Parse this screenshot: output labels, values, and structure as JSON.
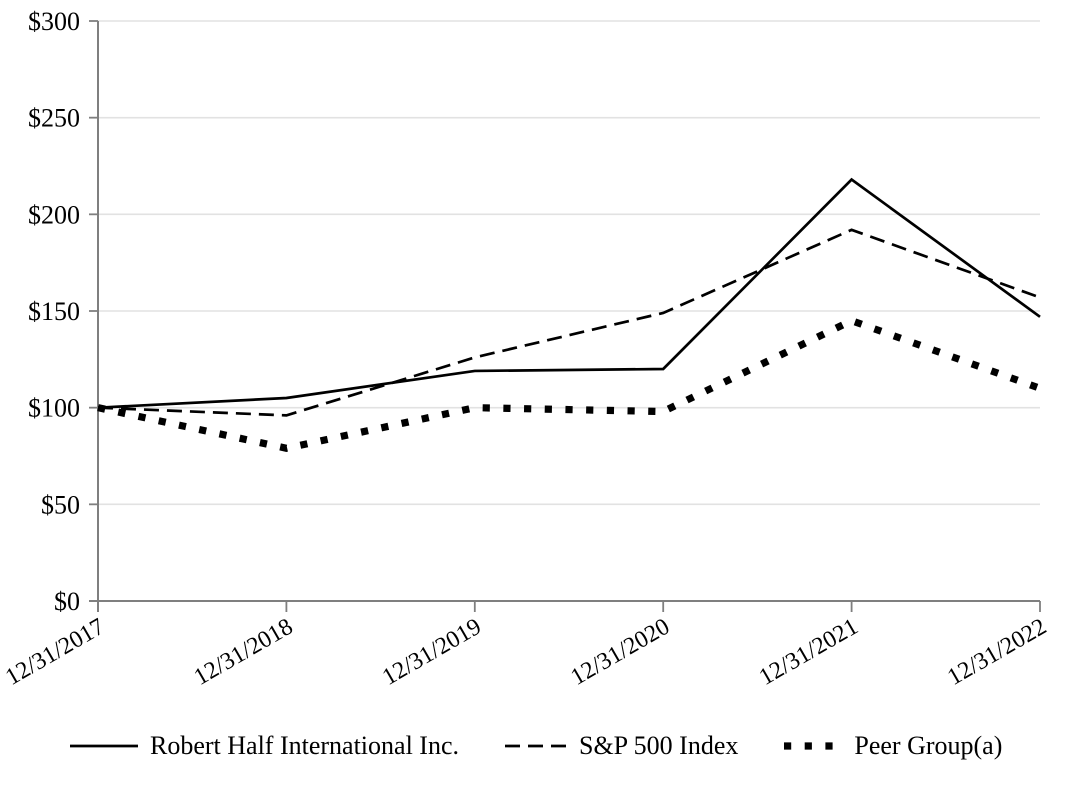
{
  "chart_data": {
    "type": "line",
    "x_categories": [
      "12/31/2017",
      "12/31/2018",
      "12/31/2019",
      "12/31/2020",
      "12/31/2021",
      "12/31/2022"
    ],
    "series": [
      {
        "name": "Robert Half International Inc.",
        "style": "solid",
        "color": "#000000",
        "values": [
          100,
          105,
          119,
          120,
          218,
          147
        ]
      },
      {
        "name": "S&P 500 Index",
        "style": "dashed",
        "color": "#000000",
        "values": [
          100,
          96,
          126,
          149,
          192,
          157
        ]
      },
      {
        "name": "Peer Group(a)",
        "style": "dotted",
        "color": "#000000",
        "values": [
          100,
          79,
          100,
          98,
          145,
          110
        ]
      }
    ],
    "y_axis": {
      "tick_labels": [
        "$0",
        "$50",
        "$100",
        "$150",
        "$200",
        "$250",
        "$300"
      ],
      "tick_values": [
        0,
        50,
        100,
        150,
        200,
        250,
        300
      ],
      "ylim": [
        0,
        300
      ],
      "currency_prefix": "$"
    },
    "grid": true,
    "legend_position": "bottom",
    "colors": {
      "axis": "#7f7f7f",
      "gridline": "#e2e2e2",
      "text": "#000000",
      "series": "#000000",
      "background": "#ffffff"
    }
  }
}
